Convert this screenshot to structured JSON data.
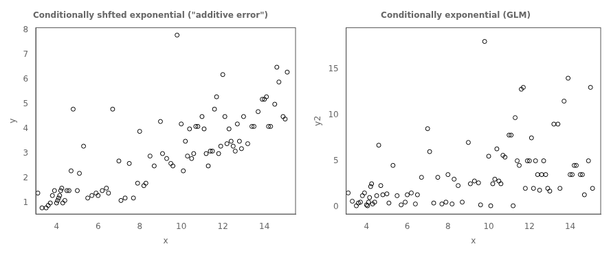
{
  "chart_data": [
    {
      "type": "scatter",
      "title": "Conditionally shfted exponential (\"additive error\")",
      "xlabel": "x",
      "ylabel": "y",
      "x": [
        3.1,
        3.3,
        3.5,
        3.6,
        3.7,
        3.8,
        3.9,
        4.0,
        4.05,
        4.1,
        4.15,
        4.2,
        4.25,
        4.3,
        4.4,
        4.5,
        4.6,
        4.7,
        4.8,
        5.0,
        5.1,
        5.3,
        5.5,
        5.7,
        5.9,
        6.0,
        6.2,
        6.4,
        6.5,
        6.7,
        7.0,
        7.1,
        7.3,
        7.5,
        7.7,
        7.9,
        8.0,
        8.2,
        8.3,
        8.5,
        8.7,
        9.0,
        9.1,
        9.3,
        9.5,
        9.6,
        9.8,
        10.0,
        10.1,
        10.2,
        10.3,
        10.4,
        10.5,
        10.6,
        10.7,
        10.8,
        11.0,
        11.1,
        11.2,
        11.3,
        11.4,
        11.5,
        11.6,
        11.7,
        11.8,
        11.9,
        12.0,
        12.1,
        12.2,
        12.3,
        12.4,
        12.5,
        12.6,
        12.7,
        12.8,
        12.9,
        13.0,
        13.2,
        13.4,
        13.5,
        13.7,
        13.9,
        14.0,
        14.1,
        14.2,
        14.3,
        14.5,
        14.6,
        14.7,
        14.9,
        15.0,
        15.1
      ],
      "values": [
        1.4,
        0.8,
        0.8,
        0.9,
        1.0,
        1.3,
        1.5,
        1.0,
        1.1,
        1.2,
        1.3,
        1.5,
        1.6,
        1.0,
        1.1,
        1.5,
        1.5,
        2.3,
        4.8,
        1.5,
        2.2,
        3.3,
        1.2,
        1.3,
        1.4,
        1.3,
        1.5,
        1.6,
        1.4,
        4.8,
        2.7,
        1.1,
        1.2,
        2.6,
        1.2,
        1.8,
        3.9,
        1.7,
        1.8,
        2.9,
        2.5,
        4.3,
        3.0,
        2.8,
        2.6,
        2.5,
        7.8,
        4.2,
        2.3,
        3.5,
        2.9,
        4.0,
        2.8,
        3.0,
        4.1,
        4.1,
        4.5,
        4.0,
        3.0,
        2.5,
        3.1,
        3.1,
        4.8,
        5.3,
        3.0,
        3.3,
        6.2,
        4.5,
        3.4,
        4.0,
        3.5,
        3.3,
        3.1,
        4.2,
        3.5,
        3.2,
        4.5,
        3.4,
        4.1,
        4.1,
        4.7,
        5.2,
        5.2,
        5.3,
        4.1,
        4.1,
        5.0,
        6.5,
        5.9,
        4.5,
        4.4,
        6.3
      ],
      "xlim": [
        3.0,
        15.5
      ],
      "ylim": [
        0.55,
        8.1
      ],
      "xticks": [
        4,
        6,
        8,
        10,
        12,
        14
      ],
      "yticks": [
        1,
        2,
        3,
        4,
        5,
        6,
        7,
        8
      ],
      "grid": false,
      "color": "#000000",
      "marker": "circle"
    },
    {
      "type": "scatter",
      "title": "Conditionally exponential (GLM)",
      "xlabel": "x",
      "ylabel": "y2",
      "x": [
        3.1,
        3.3,
        3.5,
        3.6,
        3.7,
        3.8,
        3.9,
        4.0,
        4.05,
        4.1,
        4.15,
        4.2,
        4.25,
        4.3,
        4.4,
        4.5,
        4.6,
        4.7,
        4.8,
        5.0,
        5.1,
        5.3,
        5.5,
        5.7,
        5.9,
        6.0,
        6.2,
        6.4,
        6.5,
        6.7,
        7.0,
        7.1,
        7.3,
        7.5,
        7.7,
        7.9,
        8.0,
        8.2,
        8.3,
        8.5,
        8.7,
        9.0,
        9.1,
        9.3,
        9.5,
        9.6,
        9.8,
        10.0,
        10.1,
        10.2,
        10.3,
        10.4,
        10.5,
        10.6,
        10.7,
        10.8,
        11.0,
        11.1,
        11.2,
        11.3,
        11.4,
        11.5,
        11.6,
        11.7,
        11.8,
        11.9,
        12.0,
        12.1,
        12.2,
        12.3,
        12.4,
        12.5,
        12.6,
        12.7,
        12.8,
        12.9,
        13.0,
        13.2,
        13.4,
        13.5,
        13.7,
        13.9,
        14.0,
        14.1,
        14.2,
        14.3,
        14.5,
        14.6,
        14.7,
        14.9,
        15.0,
        15.1
      ],
      "values": [
        1.5,
        0.6,
        0.1,
        0.4,
        0.5,
        1.2,
        1.5,
        0.2,
        0.1,
        0.5,
        1.0,
        2.2,
        2.5,
        0.3,
        0.5,
        1.2,
        6.7,
        2.3,
        1.3,
        1.4,
        0.4,
        4.5,
        1.2,
        0.2,
        0.5,
        1.3,
        1.5,
        0.3,
        1.3,
        3.2,
        8.5,
        6.0,
        0.4,
        3.2,
        0.3,
        0.5,
        3.5,
        0.3,
        3.0,
        2.3,
        0.5,
        7.0,
        2.5,
        2.8,
        2.6,
        0.2,
        18.0,
        5.5,
        0.1,
        2.5,
        3.0,
        6.3,
        2.8,
        2.5,
        5.6,
        5.4,
        7.8,
        7.8,
        0.1,
        9.7,
        5.0,
        4.5,
        12.8,
        13.0,
        2.0,
        5.0,
        5.0,
        7.5,
        2.0,
        5.0,
        3.5,
        1.8,
        3.5,
        5.0,
        3.5,
        2.0,
        1.7,
        9.0,
        9.0,
        2.0,
        11.5,
        14.0,
        3.5,
        3.5,
        4.5,
        4.5,
        3.5,
        3.5,
        1.3,
        5.0,
        13.0,
        2.0
      ],
      "xlim": [
        3.0,
        15.5
      ],
      "ylim": [
        -0.8,
        19.5
      ],
      "xticks": [
        4,
        6,
        8,
        10,
        12,
        14
      ],
      "yticks": [
        0,
        5,
        10,
        15
      ],
      "grid": false,
      "color": "#000000",
      "marker": "circle"
    }
  ]
}
